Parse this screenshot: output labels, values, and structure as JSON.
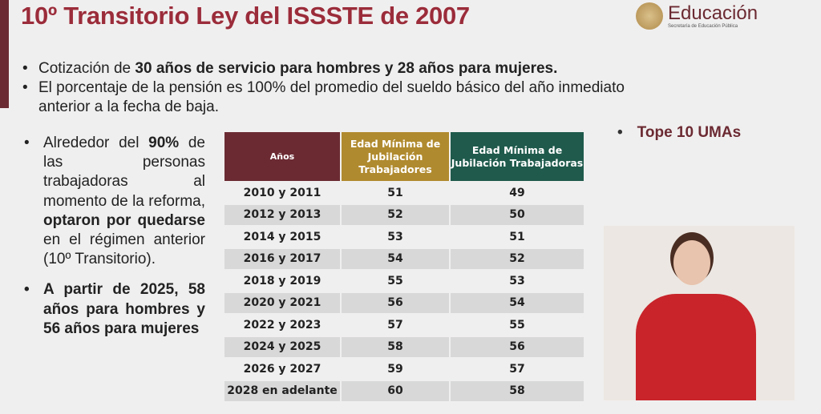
{
  "title": "10º Transitorio Ley del ISSSTE de 2007",
  "logo": {
    "main": "Educación",
    "sub": "Secretaría de Educación Pública"
  },
  "bullets": [
    {
      "pre": "Cotización de ",
      "bold": "30 años de servicio para hombres y 28 años para mujeres."
    },
    {
      "text": "El porcentaje de la pensión es 100% del promedio del sueldo básico del año inmediato anterior a la fecha de baja."
    }
  ],
  "left": {
    "p1": [
      "Alrededor del ",
      "90%",
      " de las personas trabajadoras al momento de la reforma, ",
      "optaron por quedarse",
      " en el régimen anterior (10º Transitorio)."
    ],
    "p2": "A partir de 2025, 58 años para hombres y 56 años para mujeres"
  },
  "tope": "Tope 10 UMAs",
  "table": {
    "headers": [
      "Años",
      "Edad Mínima de Jubilación Trabajadores",
      "Edad Mínima de Jubilación Trabajadoras"
    ],
    "rows": [
      [
        "2010 y 2011",
        "51",
        "49"
      ],
      [
        "2012 y 2013",
        "52",
        "50"
      ],
      [
        "2014 y 2015",
        "53",
        "51"
      ],
      [
        "2016 y 2017",
        "54",
        "52"
      ],
      [
        "2018 y 2019",
        "55",
        "53"
      ],
      [
        "2020 y 2021",
        "56",
        "54"
      ],
      [
        "2022 y 2023",
        "57",
        "55"
      ],
      [
        "2024 y 2025",
        "58",
        "56"
      ],
      [
        "2026 y 2027",
        "59",
        "57"
      ],
      [
        "2028 en adelante",
        "60",
        "58"
      ]
    ]
  },
  "colors": {
    "maroon": "#6b2a32",
    "gold": "#b08a2e",
    "green": "#1f5a4c",
    "title": "#9b2c3a"
  }
}
